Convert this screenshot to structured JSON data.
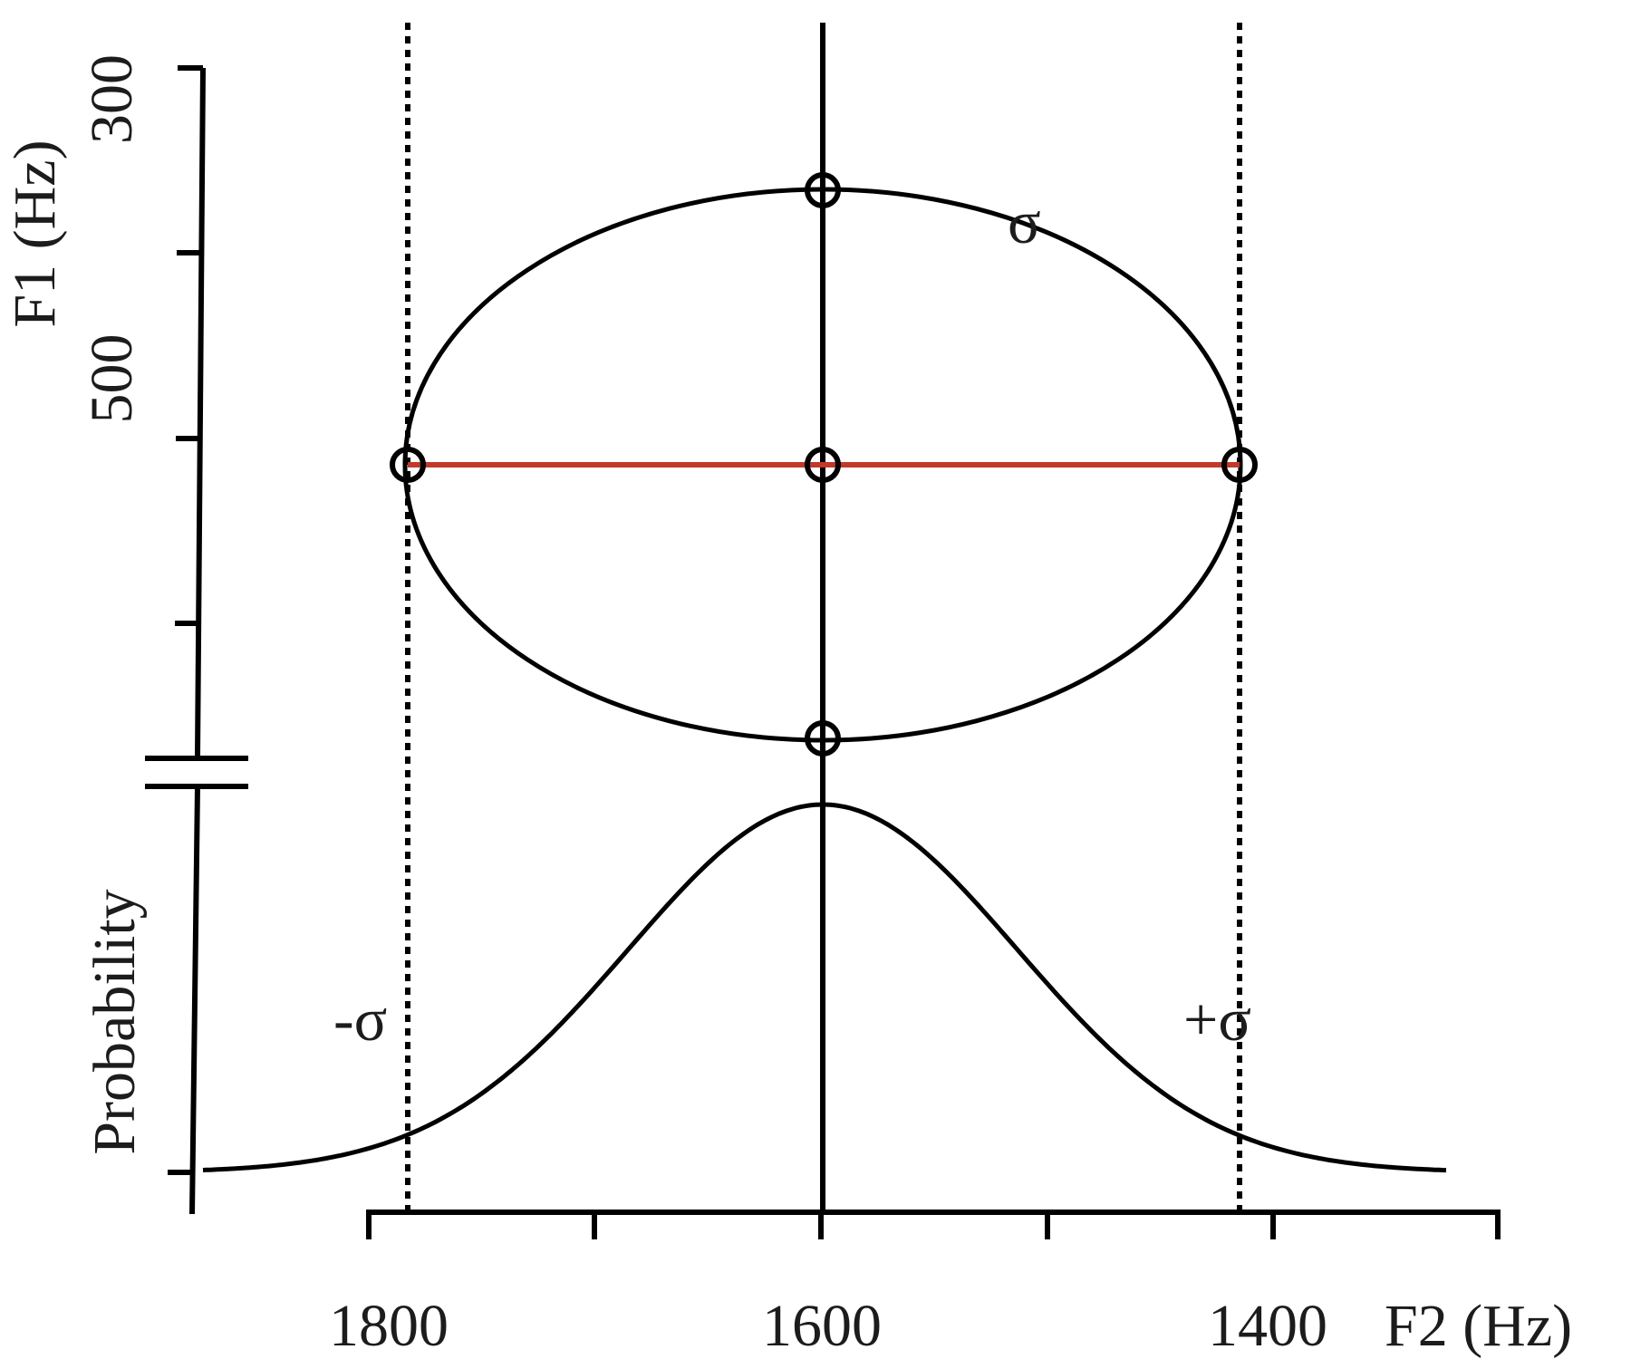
{
  "chart_data": {
    "type": "diagram",
    "x_axis": {
      "label": "F2 (Hz)",
      "tick_labels": [
        "1800",
        "1600",
        "1400"
      ],
      "reversed": true
    },
    "y_axis_top": {
      "label": "F1 (Hz)",
      "tick_labels": [
        "300",
        "500"
      ],
      "reversed": true
    },
    "y_axis_bottom": {
      "label": "Probability"
    },
    "ellipse": {
      "center": {
        "F2": 1600,
        "F1": 515
      },
      "label": "σ",
      "center_line_color": "#c0392b"
    },
    "distribution": {
      "type": "gaussian",
      "mean_F2": 1600,
      "sd_labels": {
        "minus": "-σ",
        "plus": "+σ"
      }
    }
  }
}
